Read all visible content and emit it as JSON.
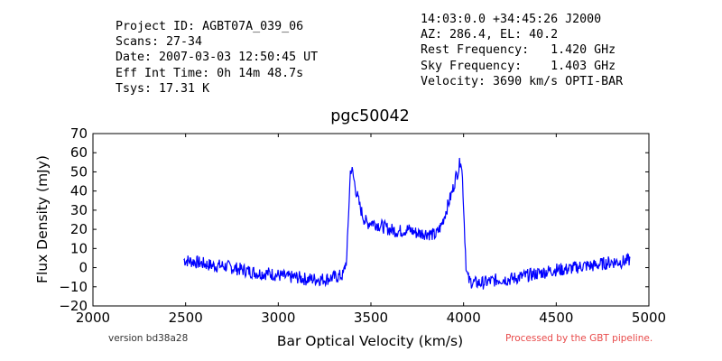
{
  "header": {
    "left_lines": [
      "Project ID: AGBT07A_039_06",
      "Scans: 27-34",
      "Date: 2007-03-03 12:50:45 UT",
      "Eff Int Time: 0h 14m 48.7s",
      "Tsys: 17.31 K"
    ],
    "right_lines": [
      "14:03:0.0 +34:45:26 J2000",
      "AZ: 286.4, EL: 40.2",
      "Rest Frequency:   1.420 GHz",
      "Sky Frequency:    1.403 GHz",
      "Velocity: 3690 km/s OPTI-BAR"
    ]
  },
  "footer": {
    "version": "version bd38a28",
    "pipeline": "Processed by the GBT pipeline.",
    "pipeline_color": "#e84a4a"
  },
  "chart_data": {
    "type": "line",
    "title": "pgc50042",
    "xlabel": "Bar Optical Velocity (km/s)",
    "ylabel": "Flux Density (mJy)",
    "xlim": [
      2000,
      5000
    ],
    "ylim": [
      -20,
      70
    ],
    "xticks": [
      2000,
      2500,
      3000,
      3500,
      4000,
      4500,
      5000
    ],
    "yticks": [
      -20,
      -10,
      0,
      10,
      20,
      30,
      40,
      50,
      60,
      70
    ],
    "grid": false,
    "line_color": "#0000ff",
    "series": [
      {
        "x": [
          2490,
          2550,
          2600,
          2650,
          2700,
          2750,
          2800,
          2850,
          2900,
          2950,
          3000,
          3050,
          3100,
          3150,
          3200,
          3250,
          3300,
          3350,
          3370,
          3380,
          3390,
          3400,
          3410,
          3420,
          3440,
          3460,
          3480,
          3500,
          3550,
          3600,
          3650,
          3700,
          3750,
          3800,
          3850,
          3880,
          3900,
          3920,
          3940,
          3960,
          3975,
          3985,
          3995,
          4005,
          4015,
          4030,
          4060,
          4100,
          4150,
          4200,
          4250,
          4300,
          4350,
          4400,
          4450,
          4500,
          4550,
          4600,
          4650,
          4700,
          4750,
          4800,
          4850,
          4900
        ],
        "y": [
          4,
          3,
          2,
          1,
          1,
          0,
          -1,
          -2,
          -3,
          -3,
          -4,
          -5,
          -5,
          -6,
          -6,
          -6,
          -5,
          -4,
          5,
          30,
          52,
          50,
          45,
          40,
          32,
          26,
          23,
          24,
          22,
          20,
          19,
          20,
          18,
          18,
          17,
          22,
          28,
          34,
          40,
          48,
          52,
          58,
          45,
          20,
          -2,
          -7,
          -8,
          -8,
          -7,
          -6,
          -6,
          -5,
          -4,
          -3,
          -2,
          -1,
          -1,
          0,
          1,
          1,
          2,
          3,
          3,
          4
        ]
      }
    ]
  }
}
